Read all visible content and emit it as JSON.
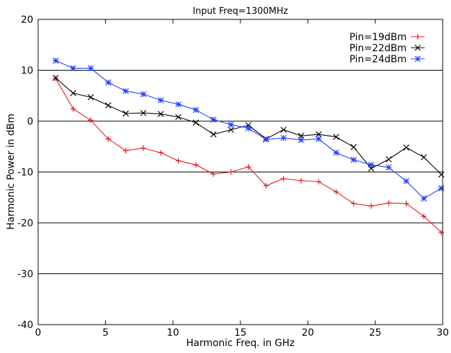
{
  "chart_data": {
    "type": "line",
    "title": "Input Freq=1300MHz",
    "xlabel": "Harmonic Freq. in GHz",
    "ylabel": "Harmonic Power in dBm",
    "xlim": [
      0,
      30
    ],
    "ylim": [
      -40,
      20
    ],
    "xticks": [
      0,
      5,
      10,
      15,
      20,
      25,
      30
    ],
    "yticks": [
      -40,
      -30,
      -20,
      -10,
      0,
      10,
      20
    ],
    "grid": "horizontal",
    "legend_position": "top-right",
    "x": [
      1.3,
      2.6,
      3.9,
      5.2,
      6.5,
      7.8,
      9.1,
      10.4,
      11.7,
      13.0,
      14.3,
      15.6,
      16.9,
      18.2,
      19.5,
      20.8,
      22.1,
      23.4,
      24.7,
      26.0,
      27.3,
      28.6,
      29.9
    ],
    "series": [
      {
        "name": "Pin=19dBm",
        "color": "#e31a1c",
        "marker": "plus",
        "values": [
          8.4,
          2.4,
          0.2,
          -3.5,
          -5.8,
          -5.3,
          -6.2,
          -7.8,
          -8.6,
          -10.4,
          -10.0,
          -9.0,
          -12.7,
          -11.3,
          -11.7,
          -11.9,
          -13.9,
          -16.2,
          -16.7,
          -16.1,
          -16.2,
          -18.7,
          -21.9
        ]
      },
      {
        "name": "Pin=22dBm",
        "color": "#000000",
        "marker": "cross",
        "values": [
          8.5,
          5.5,
          4.7,
          3.1,
          1.5,
          1.6,
          1.4,
          0.8,
          -0.3,
          -2.6,
          -1.7,
          -0.8,
          -3.5,
          -1.7,
          -2.9,
          -2.6,
          -3.1,
          -5.1,
          -9.3,
          -7.5,
          -5.2,
          -7.1,
          -10.5
        ]
      },
      {
        "name": "Pin=24dBm",
        "color": "#1f3fff",
        "marker": "star",
        "values": [
          11.9,
          10.4,
          10.4,
          7.6,
          5.9,
          5.3,
          4.1,
          3.3,
          2.2,
          0.3,
          -0.7,
          -1.4,
          -3.6,
          -3.3,
          -3.7,
          -3.5,
          -6.2,
          -7.6,
          -8.6,
          -9.1,
          -11.8,
          -15.2,
          -13.2
        ]
      }
    ]
  }
}
